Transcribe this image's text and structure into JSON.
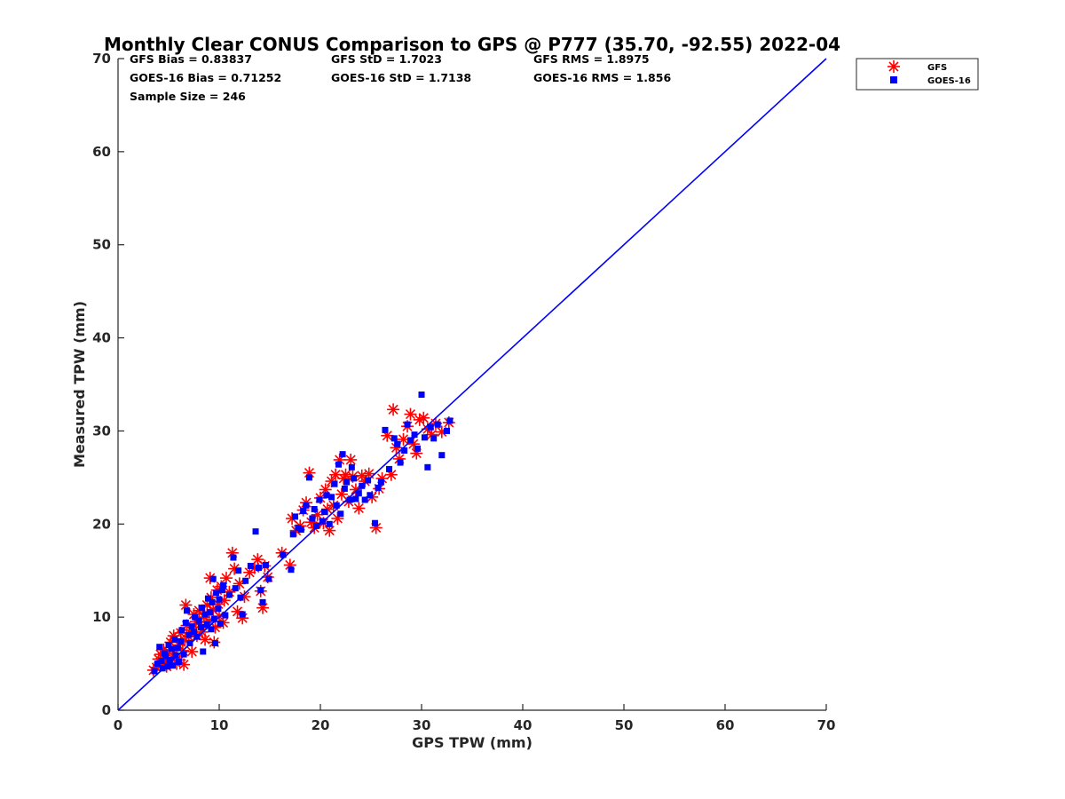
{
  "chart_data": {
    "type": "scatter",
    "title": "Monthly Clear CONUS Comparison to GPS @ P777 (35.70, -92.55) 2022-04",
    "xlabel": "GPS TPW (mm)",
    "ylabel": "Measured TPW (mm)",
    "xlim": [
      0,
      70
    ],
    "ylim": [
      0,
      70
    ],
    "xticks": [
      "0",
      "10",
      "20",
      "30",
      "40",
      "50",
      "60",
      "70"
    ],
    "yticks": [
      "0",
      "10",
      "20",
      "30",
      "40",
      "50",
      "60",
      "70"
    ],
    "grid": false,
    "legend_position": "outside-top-right",
    "stats": {
      "gfs_bias": "GFS Bias = 0.83837",
      "gfs_std": "GFS StD = 1.7023",
      "gfs_rms": "GFS RMS = 1.8975",
      "goes_bias": "GOES-16 Bias = 0.71252",
      "goes_std": "GOES-16 StD = 1.7138",
      "goes_rms": "GOES-16 RMS = 1.856",
      "sample_size": "Sample Size = 246"
    },
    "reference_line": {
      "x": [
        0,
        70
      ],
      "y": [
        0,
        70
      ],
      "color": "#0000ff"
    },
    "series": [
      {
        "name": "GFS",
        "marker": "asterisk",
        "color": "#ff0000",
        "points": [
          [
            3.5,
            4.3
          ],
          [
            3.8,
            4.6
          ],
          [
            4.0,
            5.5
          ],
          [
            4.2,
            6.0
          ],
          [
            4.3,
            4.9
          ],
          [
            4.5,
            6.5
          ],
          [
            4.7,
            5.2
          ],
          [
            4.8,
            4.7
          ],
          [
            5.0,
            6.3
          ],
          [
            5.1,
            5.0
          ],
          [
            5.2,
            7.3
          ],
          [
            5.4,
            5.6
          ],
          [
            5.5,
            8.0
          ],
          [
            5.6,
            6.1
          ],
          [
            5.8,
            5.0
          ],
          [
            6.0,
            7.0
          ],
          [
            6.1,
            5.4
          ],
          [
            6.2,
            8.3
          ],
          [
            6.4,
            6.4
          ],
          [
            6.5,
            4.9
          ],
          [
            6.6,
            7.5
          ],
          [
            6.7,
            11.3
          ],
          [
            6.8,
            9.1
          ],
          [
            7.0,
            7.9
          ],
          [
            7.2,
            8.6
          ],
          [
            7.3,
            6.3
          ],
          [
            7.5,
            10.3
          ],
          [
            7.7,
            9.5
          ],
          [
            7.8,
            8.0
          ],
          [
            8.0,
            10.7
          ],
          [
            8.1,
            9.2
          ],
          [
            8.3,
            8.4
          ],
          [
            8.5,
            10.0
          ],
          [
            8.6,
            7.6
          ],
          [
            8.8,
            11.3
          ],
          [
            9.0,
            9.6
          ],
          [
            9.1,
            14.2
          ],
          [
            9.2,
            12.1
          ],
          [
            9.4,
            10.8
          ],
          [
            9.5,
            7.3
          ],
          [
            9.6,
            8.9
          ],
          [
            9.8,
            12.9
          ],
          [
            9.9,
            11.4
          ],
          [
            10.0,
            10.1
          ],
          [
            10.2,
            13.3
          ],
          [
            10.4,
            9.4
          ],
          [
            10.5,
            11.8
          ],
          [
            10.7,
            14.2
          ],
          [
            11.0,
            12.7
          ],
          [
            11.3,
            16.9
          ],
          [
            11.5,
            15.2
          ],
          [
            11.8,
            10.6
          ],
          [
            12.0,
            13.6
          ],
          [
            12.3,
            9.9
          ],
          [
            12.5,
            12.2
          ],
          [
            13.0,
            14.8
          ],
          [
            13.5,
            15.3
          ],
          [
            13.8,
            16.2
          ],
          [
            14.1,
            12.8
          ],
          [
            14.3,
            11.0
          ],
          [
            14.5,
            15.5
          ],
          [
            14.8,
            14.3
          ],
          [
            16.2,
            16.9
          ],
          [
            17.0,
            15.6
          ],
          [
            17.2,
            20.6
          ],
          [
            17.6,
            19.3
          ],
          [
            18.0,
            19.8
          ],
          [
            18.3,
            21.5
          ],
          [
            18.6,
            22.3
          ],
          [
            18.9,
            25.5
          ],
          [
            19.1,
            20.2
          ],
          [
            19.4,
            19.6
          ],
          [
            19.7,
            21.0
          ],
          [
            20.0,
            22.8
          ],
          [
            20.3,
            20.1
          ],
          [
            20.5,
            23.7
          ],
          [
            20.7,
            21.6
          ],
          [
            20.9,
            19.3
          ],
          [
            21.1,
            24.6
          ],
          [
            21.3,
            22.0
          ],
          [
            21.5,
            25.3
          ],
          [
            21.7,
            20.6
          ],
          [
            21.9,
            26.9
          ],
          [
            22.1,
            23.2
          ],
          [
            22.3,
            24.9
          ],
          [
            22.5,
            25.3
          ],
          [
            22.8,
            22.4
          ],
          [
            23.0,
            26.9
          ],
          [
            23.2,
            25.1
          ],
          [
            23.5,
            23.7
          ],
          [
            23.8,
            21.7
          ],
          [
            24.1,
            25.2
          ],
          [
            24.4,
            24.6
          ],
          [
            24.8,
            25.4
          ],
          [
            25.1,
            22.9
          ],
          [
            25.5,
            19.6
          ],
          [
            25.8,
            23.8
          ],
          [
            26.1,
            24.9
          ],
          [
            26.6,
            29.5
          ],
          [
            27.0,
            25.3
          ],
          [
            27.2,
            32.3
          ],
          [
            27.5,
            28.2
          ],
          [
            27.8,
            27.0
          ],
          [
            28.2,
            29.1
          ],
          [
            28.6,
            30.5
          ],
          [
            28.9,
            31.8
          ],
          [
            29.2,
            28.6
          ],
          [
            29.5,
            27.6
          ],
          [
            29.8,
            31.2
          ],
          [
            30.2,
            31.4
          ],
          [
            30.6,
            30.2
          ],
          [
            31.0,
            29.6
          ],
          [
            31.4,
            30.8
          ],
          [
            32.0,
            29.9
          ],
          [
            32.7,
            30.9
          ]
        ]
      },
      {
        "name": "GOES-16",
        "marker": "square",
        "color": "#0000ff",
        "points": [
          [
            3.6,
            4.2
          ],
          [
            3.9,
            5.0
          ],
          [
            4.1,
            6.8
          ],
          [
            4.3,
            5.3
          ],
          [
            4.4,
            4.5
          ],
          [
            4.6,
            6.1
          ],
          [
            4.7,
            5.8
          ],
          [
            4.9,
            4.7
          ],
          [
            5.0,
            7.0
          ],
          [
            5.1,
            5.4
          ],
          [
            5.3,
            6.6
          ],
          [
            5.4,
            4.8
          ],
          [
            5.6,
            7.6
          ],
          [
            5.7,
            5.9
          ],
          [
            5.9,
            6.7
          ],
          [
            6.0,
            5.2
          ],
          [
            6.2,
            7.4
          ],
          [
            6.3,
            8.6
          ],
          [
            6.5,
            6.0
          ],
          [
            6.7,
            9.4
          ],
          [
            6.8,
            10.7
          ],
          [
            7.0,
            8.1
          ],
          [
            7.1,
            7.2
          ],
          [
            7.3,
            9.0
          ],
          [
            7.5,
            8.4
          ],
          [
            7.6,
            10.0
          ],
          [
            7.8,
            7.9
          ],
          [
            8.0,
            9.6
          ],
          [
            8.2,
            8.9
          ],
          [
            8.3,
            11.0
          ],
          [
            8.4,
            6.3
          ],
          [
            8.6,
            10.3
          ],
          [
            8.8,
            9.2
          ],
          [
            8.9,
            12.0
          ],
          [
            9.1,
            10.5
          ],
          [
            9.2,
            8.7
          ],
          [
            9.3,
            11.6
          ],
          [
            9.4,
            14.1
          ],
          [
            9.5,
            9.8
          ],
          [
            9.6,
            7.2
          ],
          [
            9.7,
            12.6
          ],
          [
            9.9,
            10.9
          ],
          [
            10.0,
            11.9
          ],
          [
            10.1,
            9.3
          ],
          [
            10.3,
            12.9
          ],
          [
            10.4,
            13.4
          ],
          [
            10.6,
            10.2
          ],
          [
            11.0,
            12.4
          ],
          [
            11.4,
            16.4
          ],
          [
            11.6,
            13.1
          ],
          [
            11.9,
            15.0
          ],
          [
            12.1,
            12.1
          ],
          [
            12.3,
            10.3
          ],
          [
            12.6,
            13.9
          ],
          [
            13.1,
            15.5
          ],
          [
            13.6,
            19.2
          ],
          [
            13.9,
            15.3
          ],
          [
            14.1,
            12.9
          ],
          [
            14.3,
            11.6
          ],
          [
            14.6,
            15.6
          ],
          [
            14.9,
            14.1
          ],
          [
            16.3,
            16.7
          ],
          [
            17.1,
            15.1
          ],
          [
            17.3,
            18.9
          ],
          [
            17.5,
            20.8
          ],
          [
            17.8,
            19.6
          ],
          [
            18.1,
            19.4
          ],
          [
            18.3,
            21.4
          ],
          [
            18.6,
            22.0
          ],
          [
            18.9,
            25.0
          ],
          [
            19.2,
            20.6
          ],
          [
            19.4,
            21.6
          ],
          [
            19.6,
            19.8
          ],
          [
            19.9,
            22.6
          ],
          [
            20.2,
            20.3
          ],
          [
            20.4,
            21.3
          ],
          [
            20.6,
            23.1
          ],
          [
            20.9,
            20.0
          ],
          [
            21.1,
            22.9
          ],
          [
            21.4,
            24.3
          ],
          [
            21.6,
            22.0
          ],
          [
            21.8,
            26.4
          ],
          [
            22.0,
            21.1
          ],
          [
            22.2,
            27.5
          ],
          [
            22.4,
            23.8
          ],
          [
            22.6,
            24.5
          ],
          [
            22.9,
            22.6
          ],
          [
            23.1,
            26.1
          ],
          [
            23.3,
            24.9
          ],
          [
            23.5,
            22.7
          ],
          [
            23.8,
            23.3
          ],
          [
            24.1,
            24.1
          ],
          [
            24.4,
            22.6
          ],
          [
            24.7,
            24.7
          ],
          [
            24.9,
            23.1
          ],
          [
            25.4,
            20.1
          ],
          [
            25.7,
            23.9
          ],
          [
            26.0,
            24.5
          ],
          [
            26.4,
            30.1
          ],
          [
            26.8,
            25.9
          ],
          [
            27.3,
            29.2
          ],
          [
            27.6,
            28.6
          ],
          [
            27.9,
            26.6
          ],
          [
            28.3,
            27.9
          ],
          [
            28.6,
            30.7
          ],
          [
            28.9,
            29.0
          ],
          [
            29.3,
            29.6
          ],
          [
            29.6,
            28.1
          ],
          [
            30.0,
            33.9
          ],
          [
            30.3,
            29.3
          ],
          [
            30.6,
            26.1
          ],
          [
            30.9,
            30.4
          ],
          [
            31.2,
            29.2
          ],
          [
            31.6,
            30.7
          ],
          [
            32.0,
            27.4
          ],
          [
            32.5,
            30.0
          ],
          [
            32.8,
            31.1
          ]
        ]
      }
    ]
  },
  "legend": {
    "items": [
      {
        "label": "GFS",
        "marker": "asterisk",
        "color": "#ff0000"
      },
      {
        "label": "GOES-16",
        "marker": "square",
        "color": "#0000ff"
      }
    ]
  }
}
